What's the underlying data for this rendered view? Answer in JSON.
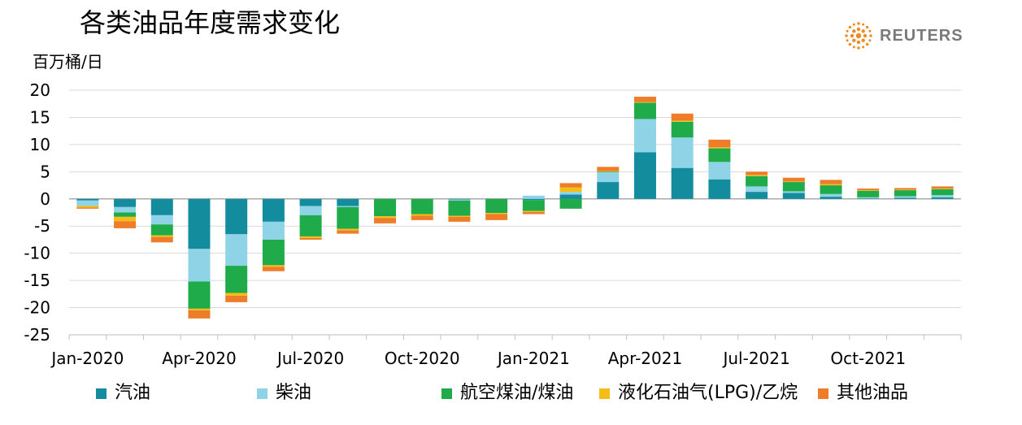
{
  "title": "各类油品年度需求变化",
  "logo": {
    "text": "REUTERS"
  },
  "chart_data": {
    "type": "bar",
    "stacked": true,
    "unit_label": "百万桶/日",
    "ylim": [
      -25,
      20
    ],
    "yticks": [
      20,
      15,
      10,
      5,
      0,
      -5,
      -10,
      -15,
      -20,
      -25
    ],
    "xtick_labels": [
      {
        "index": 0,
        "label": "Jan-2020"
      },
      {
        "index": 3,
        "label": "Apr-2020"
      },
      {
        "index": 6,
        "label": "Jul-2020"
      },
      {
        "index": 9,
        "label": "Oct-2020"
      },
      {
        "index": 12,
        "label": "Jan-2021"
      },
      {
        "index": 15,
        "label": "Apr-2021"
      },
      {
        "index": 18,
        "label": "Jul-2021"
      },
      {
        "index": 21,
        "label": "Oct-2021"
      }
    ],
    "categories": [
      "Jan-2020",
      "Feb-2020",
      "Mar-2020",
      "Apr-2020",
      "May-2020",
      "Jun-2020",
      "Jul-2020",
      "Aug-2020",
      "Sep-2020",
      "Oct-2020",
      "Nov-2020",
      "Dec-2020",
      "Jan-2021",
      "Feb-2021",
      "Mar-2021",
      "Apr-2021",
      "May-2021",
      "Jun-2021",
      "Jul-2021",
      "Aug-2021",
      "Sep-2021",
      "Oct-2021",
      "Nov-2021",
      "Dec-2021"
    ],
    "grid": true,
    "legend_position": "bottom",
    "series": [
      {
        "name": "汽油",
        "color": "#138c9e",
        "values": [
          -0.3,
          -1.5,
          -3.0,
          -9.2,
          -6.5,
          -4.2,
          -1.3,
          -1.3,
          0.0,
          0.0,
          -0.1,
          0.0,
          -0.2,
          0.8,
          3.1,
          8.6,
          5.7,
          3.6,
          1.3,
          1.1,
          0.4,
          0.1,
          0.2,
          0.3
        ]
      },
      {
        "name": "柴油",
        "color": "#8fd3e6",
        "values": [
          -1.0,
          -1.0,
          -1.7,
          -6.0,
          -5.8,
          -3.3,
          -1.7,
          -0.2,
          0.0,
          0.0,
          -0.2,
          0.0,
          0.6,
          0.5,
          1.8,
          6.1,
          5.6,
          3.2,
          1.0,
          0.3,
          0.5,
          0.2,
          0.3,
          0.4
        ]
      },
      {
        "name": "航空煤油/煤油",
        "color": "#1fab4a",
        "values": [
          0.0,
          -0.8,
          -2.0,
          -5.0,
          -5.0,
          -4.7,
          -3.9,
          -4.0,
          -3.2,
          -2.8,
          -2.8,
          -2.6,
          -2.0,
          -1.8,
          0.1,
          3.0,
          2.9,
          2.5,
          1.9,
          1.7,
          1.6,
          1.2,
          1.1,
          1.1
        ]
      },
      {
        "name": "液化石油气(LPG)/乙烷",
        "color": "#f6bd16",
        "values": [
          -0.3,
          -0.8,
          -0.3,
          -0.3,
          -0.5,
          -0.3,
          -0.3,
          -0.3,
          -0.3,
          -0.3,
          -0.2,
          -0.2,
          -0.2,
          0.8,
          0.1,
          0.1,
          0.2,
          0.2,
          0.2,
          0.1,
          0.2,
          0.1,
          0.1,
          0.1
        ]
      },
      {
        "name": "其他油品",
        "color": "#ee7d2a",
        "values": [
          -0.2,
          -1.3,
          -1.0,
          -1.5,
          -1.2,
          -0.8,
          -0.3,
          -0.6,
          -1.0,
          -0.8,
          -0.9,
          -1.1,
          -0.4,
          0.8,
          0.8,
          1.0,
          1.3,
          1.4,
          0.6,
          0.7,
          0.8,
          0.3,
          0.3,
          0.4
        ]
      }
    ]
  }
}
